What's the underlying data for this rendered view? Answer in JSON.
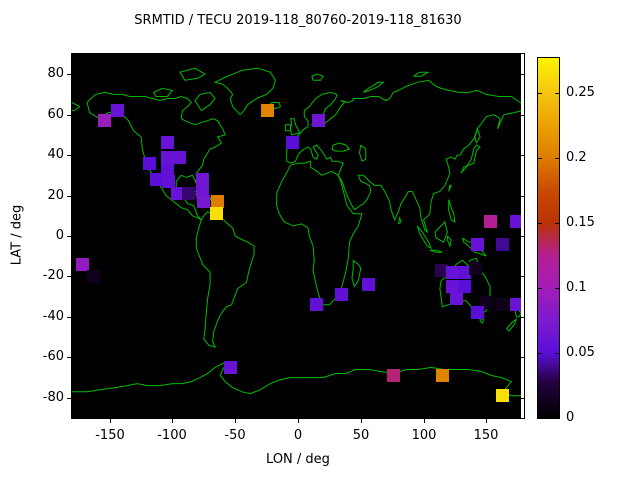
{
  "title": "SRMTID / TECU 2019-118_80760-2019-118_81630",
  "axes": {
    "xlabel": "LON / deg",
    "ylabel": "LAT / deg",
    "xlim": [
      -180,
      180
    ],
    "ylim": [
      -90,
      90
    ],
    "x_ticks": [
      {
        "value": -150,
        "label": "-150"
      },
      {
        "value": -100,
        "label": "-100"
      },
      {
        "value": -50,
        "label": "-50"
      },
      {
        "value": 0,
        "label": "0"
      },
      {
        "value": 50,
        "label": "50"
      },
      {
        "value": 100,
        "label": "100"
      },
      {
        "value": 150,
        "label": "150"
      }
    ],
    "y_ticks": [
      {
        "value": 80,
        "label": "80"
      },
      {
        "value": 60,
        "label": "60"
      },
      {
        "value": 40,
        "label": "40"
      },
      {
        "value": 20,
        "label": "20"
      },
      {
        "value": 0,
        "label": "0"
      },
      {
        "value": -20,
        "label": "-20"
      },
      {
        "value": -40,
        "label": "-40"
      },
      {
        "value": -60,
        "label": "-60"
      },
      {
        "value": -80,
        "label": "-80"
      }
    ]
  },
  "colorbar": {
    "min": 0,
    "max": 0.2772,
    "ticks": [
      {
        "value": 0,
        "label": "0"
      },
      {
        "value": 0.05,
        "label": "0.05"
      },
      {
        "value": 0.1,
        "label": "0.1"
      },
      {
        "value": 0.15,
        "label": "0.15"
      },
      {
        "value": 0.2,
        "label": "0.2"
      },
      {
        "value": 0.25,
        "label": "0.25"
      }
    ],
    "palette": [
      {
        "t": 0.0,
        "color": "#000000"
      },
      {
        "t": 0.1,
        "color": "#250140"
      },
      {
        "t": 0.18,
        "color": "#5a0fd8"
      },
      {
        "t": 0.27,
        "color": "#7d1ad0"
      },
      {
        "t": 0.36,
        "color": "#a21cb8"
      },
      {
        "t": 0.45,
        "color": "#b31f93"
      },
      {
        "t": 0.54,
        "color": "#b93207"
      },
      {
        "t": 0.63,
        "color": "#c84a00"
      },
      {
        "t": 0.72,
        "color": "#dd7c00"
      },
      {
        "t": 0.81,
        "color": "#eca000"
      },
      {
        "t": 0.9,
        "color": "#f4c411"
      },
      {
        "t": 1.0,
        "color": "#fdf400"
      }
    ]
  },
  "colors": {
    "background": "#ffffff",
    "map_background": "#000000",
    "coastline": "#00bb00",
    "text": "#000000"
  },
  "chart_data": {
    "type": "heatmap",
    "title": "SRMTID / TECU 2019-118_80760-2019-118_81630",
    "xlabel": "LON / deg",
    "ylabel": "LAT / deg",
    "xlim": [
      -180,
      180
    ],
    "ylim": [
      -90,
      90
    ],
    "grid": false,
    "colorbar_range": [
      0,
      0.2772
    ],
    "cell_size_px": 13,
    "points": [
      {
        "lon": -154,
        "lat": 57,
        "value": 0.095
      },
      {
        "lon": -144,
        "lat": 62,
        "value": 0.06
      },
      {
        "lon": -104,
        "lat": 46,
        "value": 0.06
      },
      {
        "lon": -104,
        "lat": 39,
        "value": 0.06
      },
      {
        "lon": -94,
        "lat": 39,
        "value": 0.06
      },
      {
        "lon": -104,
        "lat": 33,
        "value": 0.055
      },
      {
        "lon": -118,
        "lat": 36,
        "value": 0.05
      },
      {
        "lon": -113,
        "lat": 28,
        "value": 0.05
      },
      {
        "lon": -103,
        "lat": 27,
        "value": 0.055
      },
      {
        "lon": -96,
        "lat": 21,
        "value": 0.06
      },
      {
        "lon": -87,
        "lat": 21,
        "value": 0.035
      },
      {
        "lon": -76,
        "lat": 28,
        "value": 0.065
      },
      {
        "lon": -76,
        "lat": 22,
        "value": 0.065
      },
      {
        "lon": -75,
        "lat": 17,
        "value": 0.07
      },
      {
        "lon": -64,
        "lat": 17,
        "value": 0.2
      },
      {
        "lon": -65,
        "lat": 11,
        "value": 0.265
      },
      {
        "lon": -24,
        "lat": 62,
        "value": 0.205
      },
      {
        "lon": 16,
        "lat": 57,
        "value": 0.065
      },
      {
        "lon": -4,
        "lat": 46,
        "value": 0.05
      },
      {
        "lon": -172,
        "lat": -14,
        "value": 0.09
      },
      {
        "lon": -163,
        "lat": -20,
        "value": 0.012
      },
      {
        "lon": 15,
        "lat": -34,
        "value": 0.055
      },
      {
        "lon": 35,
        "lat": -29,
        "value": 0.055
      },
      {
        "lon": 56,
        "lat": -24,
        "value": 0.055
      },
      {
        "lon": 153,
        "lat": 7,
        "value": 0.125
      },
      {
        "lon": 174,
        "lat": 7,
        "value": 0.06
      },
      {
        "lon": 143,
        "lat": -4,
        "value": 0.06
      },
      {
        "lon": 163,
        "lat": -4,
        "value": 0.04
      },
      {
        "lon": 114,
        "lat": -17,
        "value": 0.03
      },
      {
        "lon": 123,
        "lat": -18,
        "value": 0.06
      },
      {
        "lon": 133,
        "lat": -18,
        "value": 0.055
      },
      {
        "lon": 141,
        "lat": -16,
        "value": 0.012
      },
      {
        "lon": 123,
        "lat": -25,
        "value": 0.06
      },
      {
        "lon": 133,
        "lat": -25,
        "value": 0.05
      },
      {
        "lon": 126,
        "lat": -31,
        "value": 0.06
      },
      {
        "lon": 150,
        "lat": -33,
        "value": 0.012
      },
      {
        "lon": 162,
        "lat": -34,
        "value": 0.012
      },
      {
        "lon": 174,
        "lat": -34,
        "value": 0.06
      },
      {
        "lon": 143,
        "lat": -38,
        "value": 0.05
      },
      {
        "lon": -54,
        "lat": -65,
        "value": 0.06
      },
      {
        "lon": 76,
        "lat": -69,
        "value": 0.13
      },
      {
        "lon": 115,
        "lat": -69,
        "value": 0.205
      },
      {
        "lon": 163,
        "lat": -79,
        "value": 0.265
      }
    ]
  }
}
